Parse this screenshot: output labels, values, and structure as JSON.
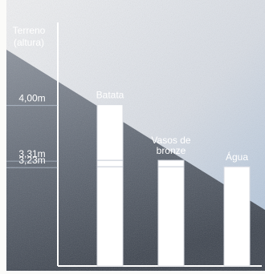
{
  "chart_data": {
    "type": "bar",
    "ylabel_lines": [
      "Terreno",
      "(altura)"
    ],
    "categories": [
      "Batata",
      "Vasos de\nbronze",
      "Água"
    ],
    "values": [
      4.0,
      3.31,
      3.23
    ],
    "yticks": [
      {
        "label": "4,00m",
        "value": 4.0
      },
      {
        "label": "3,31m",
        "value": 3.31
      },
      {
        "label": "3,23m",
        "value": 3.23
      }
    ],
    "ylim": [
      2.0,
      5.0
    ],
    "grid": false,
    "colors": {
      "bar": "#ffffff",
      "bar_stroke": "#d8dbe2",
      "axis": "#ffffff",
      "text": "#ffffff",
      "sky_top": "#e8eaee",
      "sky_bottom": "#b4c8df",
      "terrain_top": "#7b8390",
      "terrain_bottom": "#3c4450",
      "frame": "#fbfbf9"
    }
  }
}
